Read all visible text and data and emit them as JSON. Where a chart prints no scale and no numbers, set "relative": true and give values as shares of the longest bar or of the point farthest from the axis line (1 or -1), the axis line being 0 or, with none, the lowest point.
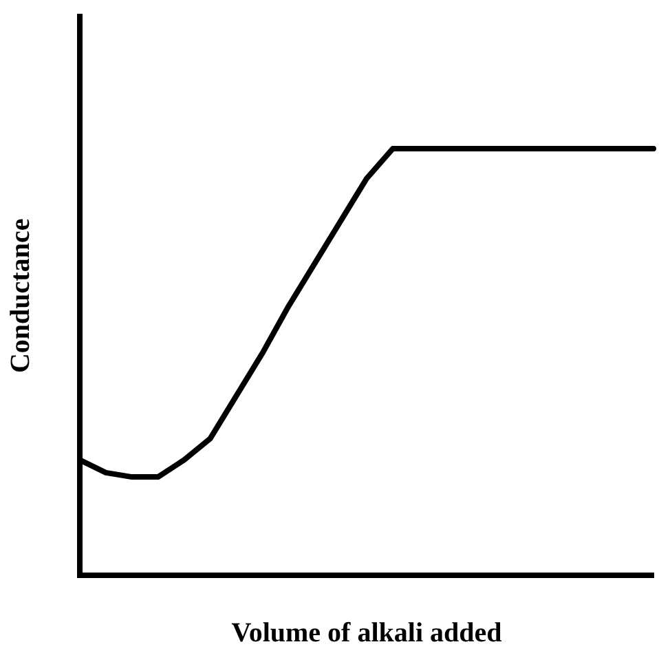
{
  "chart_data": {
    "type": "line",
    "relative": true,
    "xlabel": "Volume of alkali added",
    "ylabel": "Conductance",
    "categories": [
      null,
      null,
      null,
      null,
      null,
      null,
      null,
      null,
      null,
      null,
      null,
      null,
      null,
      null,
      null,
      null,
      null,
      null,
      null,
      null,
      null,
      null,
      null
    ],
    "series": [
      {
        "color": "#000000",
        "values": [
          0.27,
          0.24,
          0.23,
          0.23,
          0.27,
          0.32,
          0.42,
          0.52,
          0.63,
          0.73,
          0.83,
          0.93,
          1,
          1,
          1,
          1,
          1,
          1,
          1,
          1,
          1,
          1,
          1
        ]
      }
    ],
    "grid": false,
    "legend": false,
    "marker": "none",
    "line_style": "solid"
  }
}
